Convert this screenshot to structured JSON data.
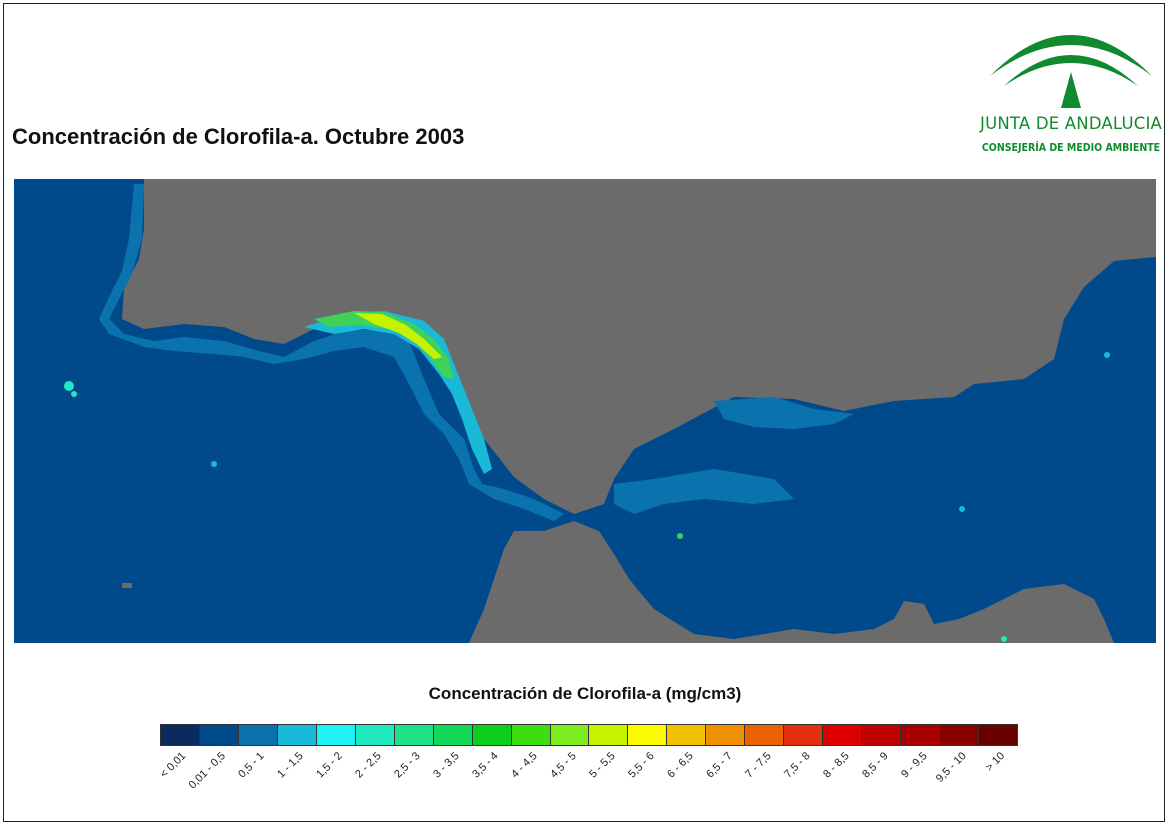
{
  "title": "Concentración de Clorofila-a. Octubre 2003",
  "logo": {
    "line1": "JUNTA DE ANDALUCIA",
    "line2": "CONSEJERÍA DE MEDIO AMBIENTE",
    "icon": "junta-andalucia-logo-icon",
    "color": "#118a2e"
  },
  "map": {
    "land_color": "#6b6b6b",
    "sea_color": "#004a8c",
    "coastal_colors": [
      "#0a73ad",
      "#19b9d8",
      "#22e8c0",
      "#3fd15a",
      "#7ee01a",
      "#c6f200"
    ]
  },
  "legend": {
    "title": "Concentración de Clorofila-a (mg/cm3)",
    "classes": [
      {
        "label": "< 0,01",
        "color": "#0a2a60"
      },
      {
        "label": "0,01 - 0,5",
        "color": "#004a8c"
      },
      {
        "label": "0,5 - 1",
        "color": "#0a73ad"
      },
      {
        "label": "1 - 1,5",
        "color": "#19b9d8"
      },
      {
        "label": "1,5 - 2",
        "color": "#21f1f1"
      },
      {
        "label": "2 - 2,5",
        "color": "#22e8c0"
      },
      {
        "label": "2,5 - 3",
        "color": "#1fe08a"
      },
      {
        "label": "3 - 3,5",
        "color": "#14d85a"
      },
      {
        "label": "3,5 - 4",
        "color": "#0bcf1c"
      },
      {
        "label": "4 - 4,5",
        "color": "#3fdc12"
      },
      {
        "label": "4,5 - 5",
        "color": "#7eec1e"
      },
      {
        "label": "5 - 5,5",
        "color": "#c6f200"
      },
      {
        "label": "5,5 - 6",
        "color": "#fafa00"
      },
      {
        "label": "6 - 6,5",
        "color": "#f2c200"
      },
      {
        "label": "6,5 - 7",
        "color": "#ee9000"
      },
      {
        "label": "7 - 7,5",
        "color": "#ea6200"
      },
      {
        "label": "7,5 - 8",
        "color": "#e23010"
      },
      {
        "label": "8 - 8,5",
        "color": "#dc0000"
      },
      {
        "label": "8,5 - 9",
        "color": "#c20000"
      },
      {
        "label": "9 - 9,5",
        "color": "#a80000"
      },
      {
        "label": "9,5 - 10",
        "color": "#8a0000"
      },
      {
        "label": "> 10",
        "color": "#6a0000"
      }
    ]
  }
}
